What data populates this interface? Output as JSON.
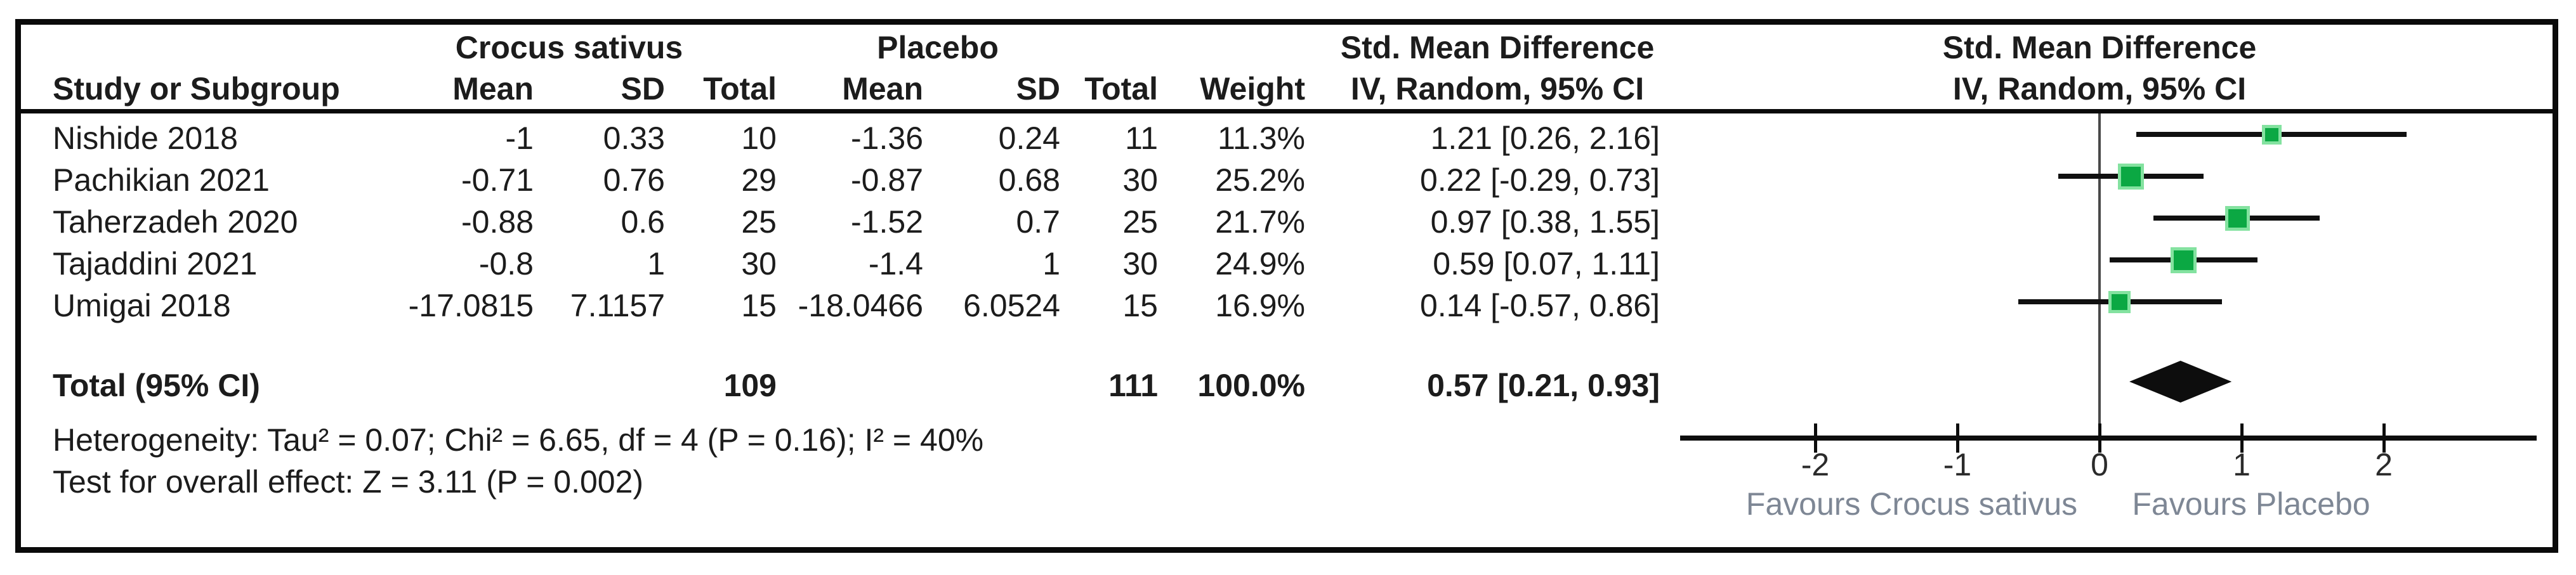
{
  "table": {
    "group1": "Crocus sativus",
    "group2": "Placebo",
    "col_headers": {
      "study": "Study or Subgroup",
      "mean": "Mean",
      "sd": "SD",
      "total": "Total",
      "weight": "Weight",
      "smd": "Std. Mean Difference",
      "method": "IV, Random, 95% CI"
    },
    "studies": [
      {
        "name": "Nishide 2018",
        "mean1": "-1",
        "sd1": "0.33",
        "total1": "10",
        "mean2": "-1.36",
        "sd2": "0.24",
        "total2": "11",
        "weight": "11.3%",
        "ci_text": "1.21 [0.26, 2.16]"
      },
      {
        "name": "Pachikian 2021",
        "mean1": "-0.71",
        "sd1": "0.76",
        "total1": "29",
        "mean2": "-0.87",
        "sd2": "0.68",
        "total2": "30",
        "weight": "25.2%",
        "ci_text": "0.22 [-0.29, 0.73]"
      },
      {
        "name": "Taherzadeh 2020",
        "mean1": "-0.88",
        "sd1": "0.6",
        "total1": "25",
        "mean2": "-1.52",
        "sd2": "0.7",
        "total2": "25",
        "weight": "21.7%",
        "ci_text": "0.97 [0.38, 1.55]"
      },
      {
        "name": "Tajaddini 2021",
        "mean1": "-0.8",
        "sd1": "1",
        "total1": "30",
        "mean2": "-1.4",
        "sd2": "1",
        "total2": "30",
        "weight": "24.9%",
        "ci_text": "0.59 [0.07, 1.11]"
      },
      {
        "name": "Umigai 2018",
        "mean1": "-17.0815",
        "sd1": "7.1157",
        "total1": "15",
        "mean2": "-18.0466",
        "sd2": "6.0524",
        "total2": "15",
        "weight": "16.9%",
        "ci_text": "0.14 [-0.57, 0.86]"
      }
    ],
    "total": {
      "label": "Total (95% CI)",
      "total1": "109",
      "total2": "111",
      "weight": "100.0%",
      "ci_text": "0.57 [0.21, 0.93]"
    },
    "heterogeneity": "Heterogeneity: Tau² = 0.07; Chi² = 6.65, df = 4 (P = 0.16); I² = 40%",
    "overall_effect": "Test for overall effect: Z = 3.11 (P = 0.002)"
  },
  "plot": {
    "header_line1": "Std. Mean Difference",
    "header_line2": "IV, Random, 95% CI",
    "favours_left": "Favours Crocus sativus",
    "favours_right": "Favours Placebo",
    "marker_color": "#0ba843",
    "marker_halo": "#84e2a0",
    "diamond_color": "#0d0d0d",
    "line_color": "#101010"
  },
  "chart_data": {
    "type": "scatter",
    "title": "Forest plot: Std. Mean Difference, IV, Random, 95% CI",
    "studies": [
      "Nishide 2018",
      "Pachikian 2021",
      "Taherzadeh 2020",
      "Tajaddini 2021",
      "Umigai 2018"
    ],
    "estimates": [
      1.21,
      0.22,
      0.97,
      0.59,
      0.14
    ],
    "ci_low": [
      0.26,
      -0.29,
      0.38,
      0.07,
      -0.57
    ],
    "ci_high": [
      2.16,
      0.73,
      1.55,
      1.11,
      0.86
    ],
    "weights_pct": [
      11.3,
      25.2,
      21.7,
      24.9,
      16.9
    ],
    "total": {
      "estimate": 0.57,
      "ci_low": 0.21,
      "ci_high": 0.93
    },
    "x_ticks": [
      -2,
      -1,
      0,
      1,
      2
    ],
    "x_tick_labels": [
      "-2",
      "-1",
      "0",
      "1",
      "2"
    ],
    "xlim": [
      -2.95,
      3.08
    ],
    "xlabel_left": "Favours Crocus sativus",
    "xlabel_right": "Favours Placebo",
    "grid": false,
    "legend": false
  }
}
